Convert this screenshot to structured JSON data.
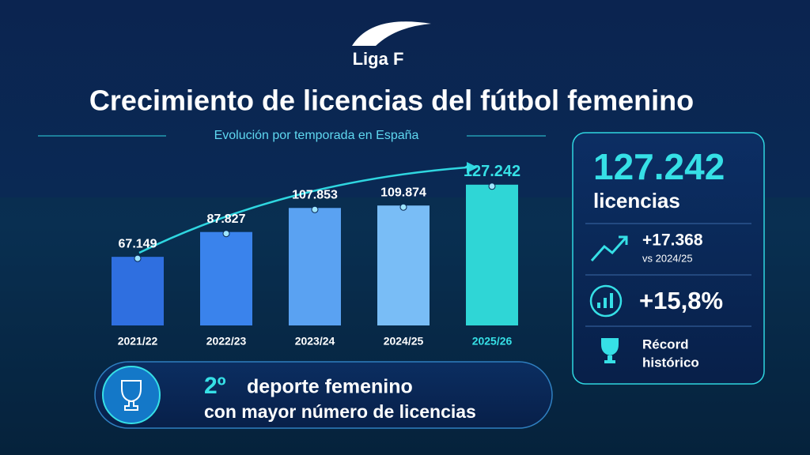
{
  "logo": "Liga F",
  "chart_data": {
    "type": "bar",
    "title": "Crecimiento de licencias del fútbol femenino",
    "subtitle": "Evolución por temporada en España",
    "categories": [
      "2021/22",
      "2022/23",
      "2023/24",
      "2024/25",
      "2025/26"
    ],
    "values": [
      67149,
      87827,
      107853,
      109874,
      127242
    ],
    "value_labels": [
      "67.149",
      "87.827",
      "107.853",
      "109.874",
      "127.242"
    ],
    "colors": [
      "#2f6fe0",
      "#3a83ec",
      "#5aa2f2",
      "#79bdf6",
      "#2fd6d6"
    ],
    "ylim": [
      10000,
      135000
    ]
  },
  "summary": {
    "total": "127.242",
    "total_label": "licencias",
    "change": "+17.368",
    "change_ref": "vs 2024/25",
    "growth": "+15,8%",
    "record": [
      "Récord",
      "histórico"
    ]
  },
  "banner": {
    "rank": "2º",
    "line1": "deporte femenino",
    "line2": "con mayor número de licencias"
  }
}
